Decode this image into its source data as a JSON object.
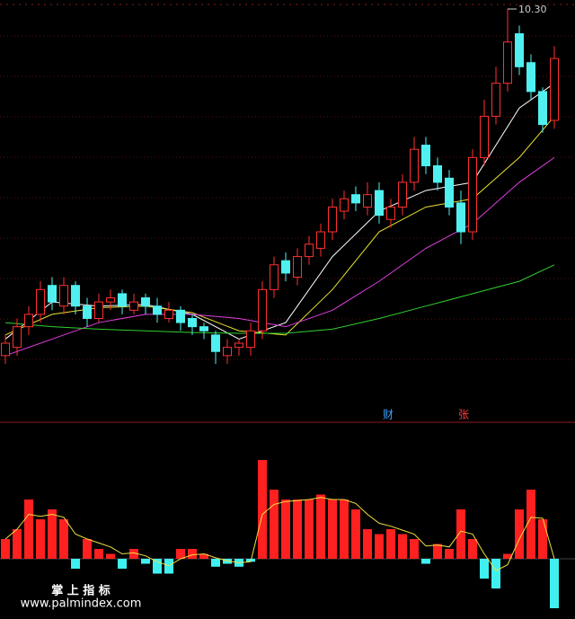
{
  "chart_data": [
    {
      "type": "candlestick",
      "open": [
        6.1,
        6.2,
        6.45,
        6.6,
        6.95,
        6.7,
        6.95,
        6.7,
        6.55,
        6.75,
        6.85,
        6.65,
        6.8,
        6.7,
        6.55,
        6.65,
        6.55,
        6.45,
        6.35,
        6.1,
        6.2,
        6.2,
        6.4,
        6.9,
        7.25,
        7.05,
        7.3,
        7.4,
        7.6,
        7.85,
        8.05,
        7.9,
        8.1,
        7.75,
        7.9,
        8.2,
        8.65,
        8.4,
        8.25,
        7.95,
        7.6,
        8.5,
        9.0,
        9.4,
        10.0,
        9.65,
        9.3,
        8.95
      ],
      "high": [
        6.35,
        6.55,
        6.7,
        7.0,
        7.05,
        7.05,
        7.0,
        6.8,
        6.85,
        6.9,
        6.9,
        6.85,
        6.85,
        6.8,
        6.75,
        6.7,
        6.6,
        6.5,
        6.4,
        6.3,
        6.3,
        6.5,
        7.0,
        7.3,
        7.35,
        7.4,
        7.55,
        7.7,
        8.0,
        8.1,
        8.15,
        8.2,
        8.2,
        8.0,
        8.3,
        8.75,
        8.75,
        8.5,
        8.35,
        8.1,
        8.6,
        9.2,
        9.6,
        10.3,
        10.1,
        9.75,
        9.35,
        9.85
      ],
      "low": [
        6.0,
        6.1,
        6.35,
        6.5,
        6.65,
        6.6,
        6.6,
        6.45,
        6.5,
        6.65,
        6.6,
        6.6,
        6.6,
        6.5,
        6.5,
        6.4,
        6.35,
        6.3,
        6.0,
        6.0,
        6.1,
        6.1,
        6.3,
        6.8,
        7.0,
        6.95,
        7.2,
        7.3,
        7.5,
        7.75,
        7.85,
        7.8,
        7.7,
        7.65,
        7.8,
        8.1,
        8.3,
        8.1,
        7.8,
        7.45,
        7.5,
        8.4,
        8.9,
        9.3,
        9.5,
        9.2,
        8.8,
        8.85
      ],
      "close": [
        6.25,
        6.45,
        6.6,
        6.9,
        6.75,
        6.95,
        6.7,
        6.55,
        6.75,
        6.8,
        6.7,
        6.75,
        6.7,
        6.6,
        6.65,
        6.5,
        6.45,
        6.4,
        6.15,
        6.2,
        6.25,
        6.4,
        6.9,
        7.2,
        7.1,
        7.3,
        7.45,
        7.6,
        7.9,
        8.0,
        7.95,
        8.05,
        7.8,
        7.9,
        8.2,
        8.6,
        8.4,
        8.2,
        7.9,
        7.6,
        8.5,
        9.0,
        9.4,
        9.9,
        9.6,
        9.3,
        8.9,
        9.7
      ],
      "high_label": "10.30",
      "lines": [
        {
          "color": "#ffffff",
          "x": [
            0,
            4,
            8,
            12,
            16,
            20,
            24,
            28,
            32,
            36,
            40,
            44,
            47
          ],
          "values": [
            6.3,
            6.75,
            6.7,
            6.72,
            6.6,
            6.3,
            6.5,
            7.3,
            7.85,
            8.1,
            8.2,
            9.1,
            9.4
          ]
        },
        {
          "color": "#e8e030",
          "x": [
            0,
            4,
            8,
            12,
            16,
            20,
            24,
            28,
            32,
            36,
            40,
            44,
            47
          ],
          "values": [
            6.35,
            6.6,
            6.68,
            6.7,
            6.62,
            6.4,
            6.35,
            6.9,
            7.6,
            7.9,
            8.0,
            8.5,
            9.0
          ]
        },
        {
          "color": "#e040e0",
          "x": [
            0,
            4,
            8,
            12,
            16,
            20,
            24,
            28,
            32,
            36,
            40,
            44,
            47
          ],
          "values": [
            6.1,
            6.3,
            6.5,
            6.6,
            6.6,
            6.55,
            6.45,
            6.65,
            7.0,
            7.4,
            7.7,
            8.2,
            8.5
          ]
        },
        {
          "color": "#30d030",
          "x": [
            0,
            4,
            8,
            12,
            16,
            20,
            24,
            28,
            32,
            36,
            40,
            44,
            47
          ],
          "values": [
            6.5,
            6.45,
            6.42,
            6.4,
            6.38,
            6.37,
            6.37,
            6.42,
            6.55,
            6.7,
            6.85,
            7.0,
            7.2
          ]
        }
      ],
      "markers": [
        {
          "text": "财",
          "color": "#40a0ff"
        },
        {
          "text": "张",
          "color": "#ff4040"
        }
      ]
    },
    {
      "type": "bar",
      "values": [
        2,
        3,
        6,
        4,
        5,
        4,
        -1,
        2,
        1,
        0.5,
        -1,
        1,
        -0.5,
        -1.5,
        -1.5,
        1,
        1,
        0.5,
        -0.8,
        -0.5,
        -0.8,
        -0.3,
        10,
        7,
        6,
        6,
        6,
        6.5,
        6,
        6,
        5,
        3,
        2.5,
        3,
        2.5,
        2,
        -0.5,
        1.5,
        1,
        5,
        2,
        -2,
        -3,
        0.5,
        5,
        7,
        4,
        -5
      ],
      "line": [
        2,
        3,
        4.5,
        4.3,
        4.5,
        4.2,
        2.5,
        2,
        1.6,
        1.2,
        0.5,
        0.6,
        0.3,
        -0.3,
        -0.7,
        0,
        0.4,
        0.5,
        0.1,
        -0.2,
        -0.4,
        -0.3,
        4.5,
        5.5,
        5.8,
        5.9,
        6,
        6.2,
        6,
        6,
        5.6,
        4.5,
        3.6,
        3.3,
        2.9,
        2.5,
        1.3,
        1.4,
        1.2,
        2.8,
        2.5,
        0.5,
        -1.2,
        -0.6,
        2,
        4.2,
        4.1,
        0
      ],
      "pos_color": "#ff2020",
      "neg_color": "#40f0f0",
      "line_color": "#f0e040"
    }
  ],
  "watermark": {
    "title": "掌 上 指 标",
    "url": "www.palmindex.com"
  }
}
